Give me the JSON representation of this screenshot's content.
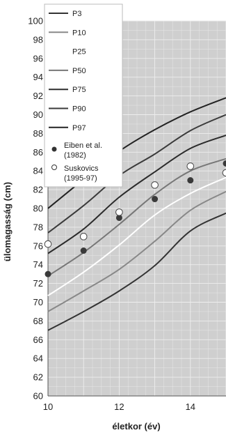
{
  "chart_data": {
    "type": "line",
    "xlabel": "életkor (év)",
    "ylabel": "ülomagasság (cm)",
    "xlim": [
      10,
      15
    ],
    "ylim": [
      60,
      100
    ],
    "x_ticks": [
      "10",
      "12",
      "14"
    ],
    "y_ticks": [
      "60",
      "62",
      "64",
      "66",
      "68",
      "70",
      "72",
      "74",
      "76",
      "78",
      "80",
      "82",
      "84",
      "86",
      "88",
      "90",
      "92",
      "94",
      "96",
      "98",
      "100"
    ],
    "grid": true,
    "legend_position": "top-left",
    "series": [
      {
        "name": "P3",
        "color": "#333333",
        "x": [
          10,
          11,
          12,
          13,
          14,
          15
        ],
        "y": [
          67.0,
          69.0,
          71.2,
          73.9,
          77.6,
          79.5
        ]
      },
      {
        "name": "P10",
        "color": "#888888",
        "x": [
          10,
          11,
          12,
          13,
          14,
          15
        ],
        "y": [
          69.0,
          71.2,
          73.5,
          76.5,
          79.8,
          81.8
        ]
      },
      {
        "name": "P25",
        "color": "#ffffff",
        "x": [
          10,
          11,
          12,
          13,
          14,
          15
        ],
        "y": [
          70.7,
          73.2,
          76.1,
          79.3,
          81.6,
          83.3
        ]
      },
      {
        "name": "P50",
        "color": "#777777",
        "x": [
          10,
          11,
          12,
          13,
          14,
          15
        ],
        "y": [
          72.8,
          75.3,
          78.3,
          81.5,
          84.0,
          85.3
        ]
      },
      {
        "name": "P75",
        "color": "#2b2b2b",
        "x": [
          10,
          11,
          12,
          13,
          14,
          15
        ],
        "y": [
          75.2,
          77.8,
          81.2,
          83.9,
          86.4,
          87.8
        ]
      },
      {
        "name": "P90",
        "color": "#3a3a3a",
        "x": [
          10,
          11,
          12,
          13,
          14,
          15
        ],
        "y": [
          77.4,
          80.3,
          83.5,
          85.8,
          88.3,
          90.0
        ]
      },
      {
        "name": "P97",
        "color": "#222222",
        "x": [
          10,
          11,
          12,
          13,
          14,
          15
        ],
        "y": [
          80.0,
          83.1,
          86.1,
          88.4,
          90.3,
          91.8
        ]
      }
    ],
    "points": [
      {
        "name": "Eiben et al. (1982)",
        "style": "filled",
        "x": [
          10,
          11,
          12,
          13,
          14,
          15
        ],
        "y": [
          73.0,
          75.5,
          79.0,
          81.0,
          83.0,
          84.8
        ]
      },
      {
        "name": "Suskovics (1995-97)",
        "style": "open",
        "x": [
          10,
          11,
          12,
          13,
          14,
          15
        ],
        "y": [
          76.2,
          77.0,
          79.6,
          82.5,
          84.5,
          83.8
        ]
      }
    ]
  },
  "legend": {
    "lines": [
      "P3",
      "P10",
      "P25",
      "P50",
      "P75",
      "P90",
      "P97"
    ],
    "eiben_line1": "Eiben et al.",
    "eiben_line2": "(1982)",
    "susk_line1": "Suskovics",
    "susk_line2": "(1995-97)"
  },
  "colors": {
    "plot_bg": "#cfcfcf",
    "grid": "#eeeeee"
  }
}
